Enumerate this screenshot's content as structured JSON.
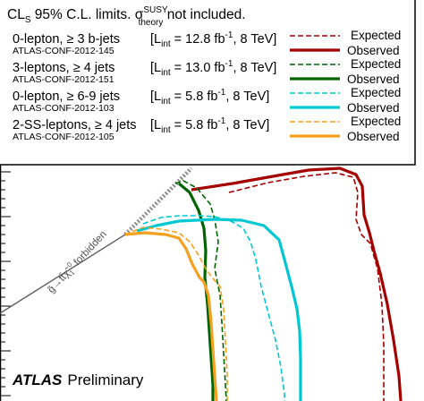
{
  "chart_data": {
    "type": "line",
    "title_parts": {
      "cl": "CL",
      "cl_sub": "S",
      "rest": " 95% C.L. limits. σ",
      "sigma_sup": "SUSY",
      "sigma_sub": "theory",
      "tail": " not included."
    },
    "analyses": [
      {
        "name": "0-lepton, ≥ 3 b-jets",
        "conf": "ATLAS-CONF-2012-145",
        "lumi": "[L",
        "lumi_sub": "int",
        "lumi_val": " = 12.8 fb",
        "lumi_sup": "-1",
        "lumi_tail": ", 8 TeV]",
        "color": "#a50000"
      },
      {
        "name": "3-leptons, ≥ 4 jets",
        "conf": "ATLAS-CONF-2012-151",
        "lumi": "[L",
        "lumi_sub": "int",
        "lumi_val": " = 13.0 fb",
        "lumi_sup": "-1",
        "lumi_tail": ", 8 TeV]",
        "color": "#006400"
      },
      {
        "name": "0-lepton, ≥ 6-9 jets",
        "conf": "ATLAS-CONF-2012-103",
        "lumi": "[L",
        "lumi_sub": "int",
        "lumi_val": " = 5.8 fb",
        "lumi_sup": "-1",
        "lumi_tail": ", 8 TeV]",
        "color": "#00c8d2"
      },
      {
        "name": "2-SS-leptons, ≥ 4 jets",
        "conf": "ATLAS-CONF-2012-105",
        "lumi": "[L",
        "lumi_sub": "int",
        "lumi_val": " = 5.8 fb",
        "lumi_sup": "-1",
        "lumi_tail": ", 8 TeV]",
        "color": "#f5a01e"
      }
    ],
    "legend": {
      "expected": "Expected",
      "observed": "Observed"
    },
    "forbidden": {
      "g": "g̃",
      "arrow": "→",
      "tt": "tt̄χ̃",
      "sub": "1",
      "sup": "0",
      "word": " forbidden"
    },
    "atlas": "ATLAS",
    "preliminary": "Preliminary",
    "series": [
      {
        "name": "0-lepton, ≥ 3 b-jets Expected",
        "style": "dashed",
        "color": "#a50000",
        "points": [
          [
            256,
            215
          ],
          [
            300,
            204
          ],
          [
            340,
            197
          ],
          [
            375,
            193
          ],
          [
            395,
            198
          ],
          [
            400,
            215
          ],
          [
            398,
            245
          ],
          [
            404,
            262
          ],
          [
            414,
            272
          ],
          [
            422,
            300
          ],
          [
            427,
            340
          ],
          [
            429,
            385
          ],
          [
            429,
            448
          ]
        ]
      },
      {
        "name": "0-lepton, ≥ 3 b-jets Observed",
        "style": "solid",
        "color": "#a50000",
        "points": [
          [
            214,
            212
          ],
          [
            260,
            205
          ],
          [
            305,
            197
          ],
          [
            345,
            190
          ],
          [
            380,
            188
          ],
          [
            398,
            195
          ],
          [
            405,
            208
          ],
          [
            407,
            240
          ],
          [
            413,
            260
          ],
          [
            418,
            280
          ],
          [
            425,
            305
          ],
          [
            433,
            340
          ],
          [
            440,
            380
          ],
          [
            446,
            420
          ],
          [
            448,
            448
          ]
        ]
      },
      {
        "name": "3-leptons, ≥ 4 jets Expected",
        "style": "dashed",
        "color": "#006400",
        "points": [
          [
            196,
            205
          ],
          [
            205,
            202
          ],
          [
            220,
            210
          ],
          [
            235,
            228
          ],
          [
            240,
            245
          ],
          [
            244,
            270
          ],
          [
            240,
            300
          ],
          [
            246,
            330
          ],
          [
            248,
            360
          ],
          [
            250,
            395
          ],
          [
            252,
            430
          ],
          [
            253,
            448
          ]
        ]
      },
      {
        "name": "3-leptons, ≥ 4 jets Observed",
        "style": "solid",
        "color": "#006400",
        "points": [
          [
            200,
            205
          ],
          [
            212,
            215
          ],
          [
            222,
            235
          ],
          [
            228,
            255
          ],
          [
            230,
            280
          ],
          [
            229,
            310
          ],
          [
            232,
            340
          ],
          [
            234,
            370
          ],
          [
            236,
            400
          ],
          [
            238,
            430
          ],
          [
            238,
            448
          ]
        ]
      },
      {
        "name": "0-lepton, ≥ 6-9 jets Expected",
        "style": "dashed",
        "color": "#00c8d2",
        "points": [
          [
            160,
            250
          ],
          [
            180,
            243
          ],
          [
            200,
            241
          ],
          [
            222,
            241
          ],
          [
            240,
            242
          ],
          [
            258,
            247
          ],
          [
            272,
            255
          ],
          [
            280,
            270
          ],
          [
            286,
            290
          ],
          [
            292,
            320
          ],
          [
            300,
            350
          ],
          [
            308,
            380
          ],
          [
            314,
            410
          ],
          [
            318,
            440
          ],
          [
            318,
            448
          ]
        ]
      },
      {
        "name": "0-lepton, ≥ 6-9 jets Observed",
        "style": "solid",
        "color": "#00c8d2",
        "points": [
          [
            153,
            258
          ],
          [
            175,
            252
          ],
          [
            200,
            247
          ],
          [
            240,
            245
          ],
          [
            270,
            246
          ],
          [
            295,
            252
          ],
          [
            312,
            268
          ],
          [
            318,
            290
          ],
          [
            326,
            320
          ],
          [
            332,
            345
          ],
          [
            335,
            370
          ],
          [
            336,
            400
          ],
          [
            336,
            448
          ]
        ]
      },
      {
        "name": "2-SS-leptons, ≥ 4 jets Expected",
        "style": "dashed",
        "color": "#f5a01e",
        "points": [
          [
            140,
            262
          ],
          [
            160,
            254
          ],
          [
            180,
            256
          ],
          [
            200,
            260
          ],
          [
            212,
            270
          ],
          [
            222,
            285
          ],
          [
            230,
            300
          ],
          [
            237,
            310
          ],
          [
            246,
            320
          ],
          [
            250,
            345
          ],
          [
            252,
            380
          ],
          [
            254,
            420
          ],
          [
            254,
            448
          ]
        ]
      },
      {
        "name": "2-SS-leptons, ≥ 4 jets Observed",
        "style": "solid",
        "color": "#f5a01e",
        "points": [
          [
            140,
            262
          ],
          [
            162,
            260
          ],
          [
            185,
            262
          ],
          [
            200,
            266
          ],
          [
            208,
            278
          ],
          [
            215,
            295
          ],
          [
            223,
            310
          ],
          [
            228,
            315
          ],
          [
            233,
            330
          ],
          [
            236,
            360
          ],
          [
            238,
            390
          ],
          [
            240,
            420
          ],
          [
            242,
            448
          ]
        ]
      }
    ]
  }
}
